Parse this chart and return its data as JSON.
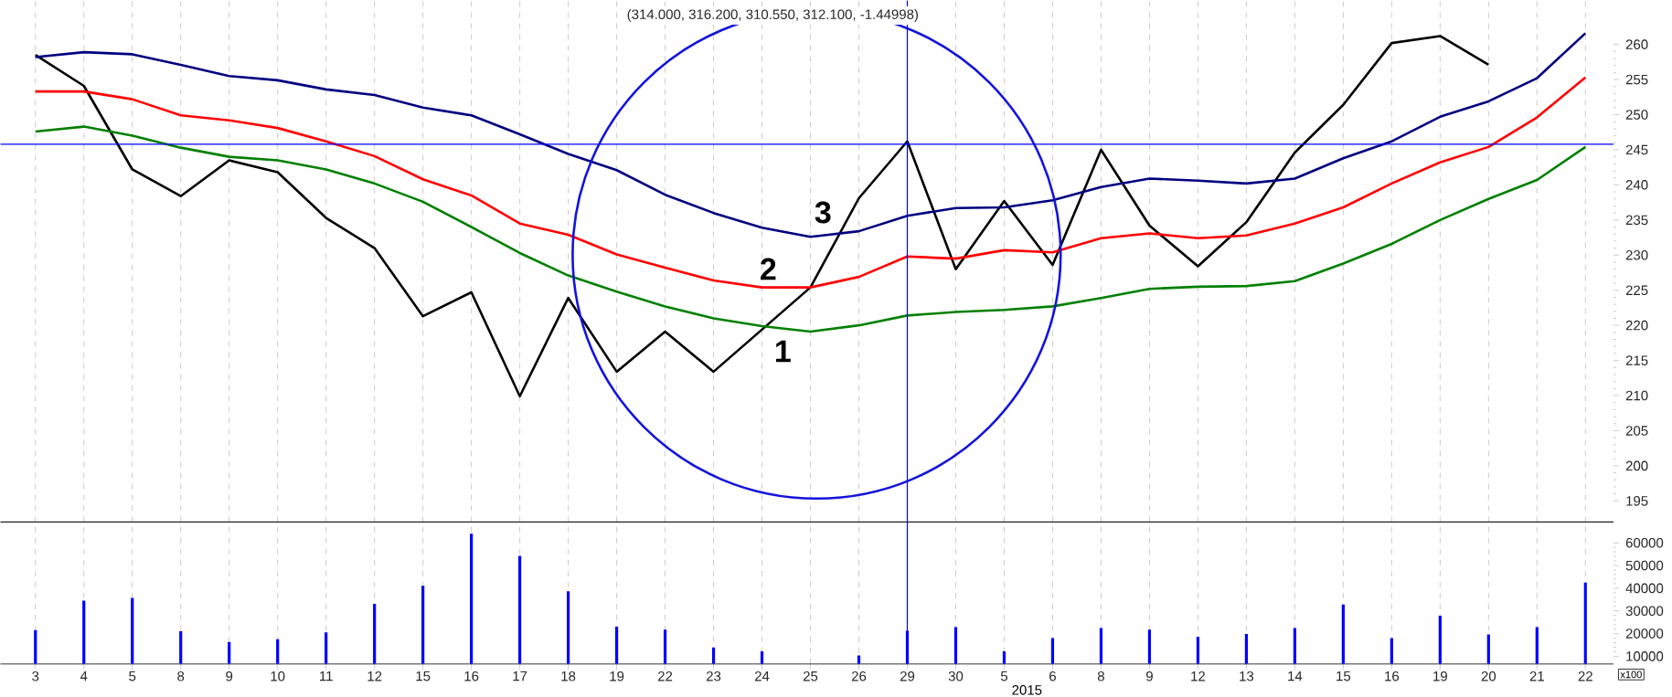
{
  "chart_data": [
    {
      "type": "line",
      "title": "(314.000, 316.200, 310.550, 312.100, -1.44998)",
      "categories": [
        "3",
        "4",
        "5",
        "8",
        "9",
        "10",
        "11",
        "12",
        "15",
        "16",
        "17",
        "18",
        "19",
        "22",
        "23",
        "24",
        "25",
        "26",
        "29",
        "30",
        "5",
        "6",
        "8",
        "9",
        "12",
        "13",
        "14",
        "15",
        "16",
        "19",
        "20",
        "21",
        "22"
      ],
      "series": [
        {
          "color": "#000000",
          "values": [
            258.5,
            254.1,
            242.2,
            238.4,
            243.5,
            241.8,
            235.3,
            231.0,
            221.3,
            224.7,
            209.9,
            223.9,
            213.4,
            219.1,
            213.4,
            219.4,
            225.4,
            238.1,
            246.2,
            228.0,
            237.7,
            228.6,
            245.0,
            234.2,
            228.4,
            234.7,
            244.6,
            251.4,
            260.2,
            261.2,
            257.1,
            null,
            null
          ]
        },
        {
          "color": "#000080",
          "values": [
            258.2,
            258.9,
            258.6,
            257.1,
            255.5,
            254.9,
            253.6,
            252.8,
            251.0,
            249.9,
            247.2,
            244.4,
            242.1,
            238.6,
            236.0,
            233.9,
            232.6,
            233.4,
            235.6,
            236.7,
            236.8,
            237.8,
            239.7,
            240.9,
            240.6,
            240.2,
            240.9,
            243.8,
            246.2,
            249.7,
            251.9,
            255.2,
            261.6
          ]
        },
        {
          "color": "#ff0000",
          "values": [
            253.3,
            253.3,
            252.2,
            249.9,
            249.2,
            248.1,
            246.2,
            244.1,
            240.8,
            238.5,
            234.5,
            232.9,
            230.1,
            228.2,
            226.4,
            225.4,
            225.4,
            226.9,
            229.8,
            229.5,
            230.7,
            230.4,
            232.4,
            233.1,
            232.4,
            232.8,
            234.5,
            236.8,
            240.2,
            243.2,
            245.4,
            249.6,
            255.3
          ]
        },
        {
          "color": "#008000",
          "values": [
            247.6,
            248.3,
            247.0,
            245.3,
            244.0,
            243.5,
            242.2,
            240.2,
            237.6,
            234.0,
            230.3,
            227.1,
            224.8,
            222.7,
            221.0,
            219.9,
            219.1,
            220.0,
            221.4,
            221.9,
            222.2,
            222.7,
            223.9,
            225.2,
            225.5,
            225.6,
            226.3,
            228.8,
            231.6,
            235.0,
            238.0,
            240.7,
            245.4
          ]
        }
      ],
      "ylim": [
        192,
        266.25
      ],
      "yticks": [
        195,
        200,
        205,
        210,
        215,
        220,
        225,
        230,
        235,
        240,
        245,
        250,
        255,
        260
      ],
      "grid": "x",
      "tick_labels": "y",
      "marker": "none",
      "line_style": "solid",
      "ref_lines": [
        {
          "axis": "y",
          "value": 245.8,
          "color": "#0000ff"
        },
        {
          "axis": "x",
          "value": "29",
          "color": "#0000ff"
        }
      ],
      "annotations": [
        "1",
        "2",
        "3"
      ]
    },
    {
      "type": "bar",
      "categories": [
        "3",
        "4",
        "5",
        "8",
        "9",
        "10",
        "11",
        "12",
        "15",
        "16",
        "17",
        "18",
        "19",
        "22",
        "23",
        "24",
        "25",
        "26",
        "29",
        "30",
        "5",
        "6",
        "8",
        "9",
        "12",
        "13",
        "14",
        "15",
        "16",
        "19",
        "20",
        "21",
        "22"
      ],
      "values": [
        21500,
        34500,
        35700,
        21000,
        16300,
        17500,
        20500,
        33100,
        41100,
        64000,
        54300,
        38700,
        23100,
        21700,
        13900,
        12200,
        null,
        10400,
        21200,
        22900,
        12200,
        18000,
        22400,
        21700,
        18600,
        19800,
        22400,
        32800,
        18000,
        27900,
        19600,
        22900,
        42500
      ],
      "color": "#0000ff",
      "ylim": [
        6600,
        69200
      ],
      "yticks": [
        10000,
        20000,
        30000,
        40000,
        50000,
        60000
      ],
      "grid": "x",
      "ref_lines": [
        {
          "axis": "x",
          "value": "29",
          "color": "#0000ff"
        }
      ],
      "annotations": [
        "2015",
        "x100"
      ]
    }
  ]
}
